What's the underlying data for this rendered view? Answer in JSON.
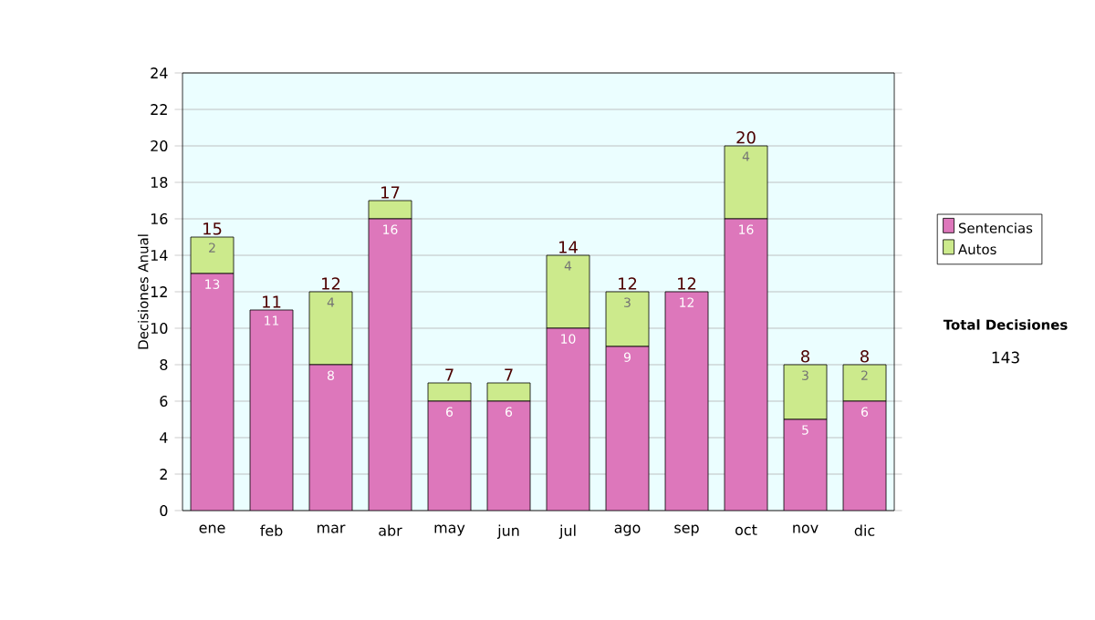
{
  "chart_data": {
    "type": "bar",
    "stacked": true,
    "ylabel": "Decisiones Anual",
    "categories": [
      "ene",
      "feb",
      "mar",
      "abr",
      "may",
      "jun",
      "jul",
      "ago",
      "sep",
      "oct",
      "nov",
      "dic"
    ],
    "series": [
      {
        "name": "Sentencias",
        "color": "#dd77bb",
        "values": [
          13,
          11,
          8,
          16,
          6,
          6,
          10,
          9,
          12,
          16,
          5,
          6
        ],
        "value_labels": [
          "13",
          "11",
          "8",
          "16",
          "6",
          "6",
          "10",
          "9",
          "12",
          "16",
          "5",
          "6"
        ]
      },
      {
        "name": "Autos",
        "color": "#ccea8c",
        "values": [
          2,
          0,
          4,
          1,
          1,
          1,
          4,
          3,
          0,
          4,
          3,
          2
        ],
        "value_labels": [
          "2",
          null,
          "4",
          null,
          null,
          null,
          "4",
          "3",
          null,
          "4",
          "3",
          "2"
        ]
      }
    ],
    "totals": [
      "15",
      "11",
      "12",
      "17",
      "7",
      "7",
      "14",
      "12",
      "12",
      "20",
      "8",
      "8"
    ],
    "ylim": [
      0,
      24
    ],
    "yticks": [
      0,
      2,
      4,
      6,
      8,
      10,
      12,
      14,
      16,
      18,
      20,
      22,
      24
    ],
    "grid": "y",
    "legend": "right",
    "annotations": [
      "Total Decisiones",
      "143"
    ]
  }
}
